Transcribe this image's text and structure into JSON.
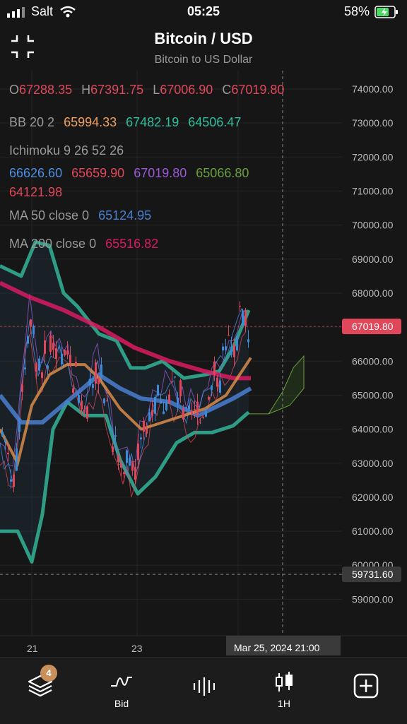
{
  "status": {
    "carrier": "Salt",
    "time": "05:25",
    "battery": "58%"
  },
  "header": {
    "title": "Bitcoin / USD",
    "subtitle": "Bitcoin to US Dollar"
  },
  "legend": {
    "ohlc": {
      "o_label": "O",
      "o": "67288.35",
      "h_label": "H",
      "h": "67391.75",
      "l_label": "L",
      "l": "67006.90",
      "c_label": "C",
      "c": "67019.80"
    },
    "bb": {
      "label": "BB 20 2",
      "v1": "65994.33",
      "v2": "67482.19",
      "v3": "64506.47"
    },
    "ichimoku": {
      "label": "Ichimoku 9 26 52 26",
      "v1": "66626.60",
      "v2": "65659.90",
      "v3": "67019.80",
      "v4": "65066.80",
      "v5": "64121.98"
    },
    "ma50": {
      "label": "MA 50 close 0",
      "value": "65124.95"
    },
    "ma200": {
      "label": "MA 200 close 0",
      "value": "65516.82"
    }
  },
  "price_axis": {
    "ticks": [
      "74000.00",
      "73000.00",
      "72000.00",
      "71000.00",
      "70000.00",
      "69000.00",
      "68000.00",
      "67000.00",
      "66000.00",
      "65000.00",
      "64000.00",
      "63000.00",
      "62000.00",
      "61000.00",
      "60000.00",
      "59000.00"
    ],
    "last_price": "67019.80",
    "crosshair_price": "59731.60"
  },
  "time_axis": {
    "labels": [
      "21",
      "23"
    ],
    "crosshair_time": "Mar 25, 2024   21:00"
  },
  "colors": {
    "bg": "#161616",
    "up": "#3d8bd8",
    "down": "#e0475a",
    "bb": "#2f9d86",
    "ma50": "#4a7fd1",
    "ma200": "#d81b60",
    "price_tag": "#e0475a",
    "badge": "#c9905c"
  },
  "bottom_nav": {
    "layers": {
      "icon": "layers-icon",
      "badge": "4"
    },
    "indicators": {
      "icon": "indicator-icon",
      "label": "Bid"
    },
    "chart_type": {
      "icon": "bars-icon"
    },
    "interval": {
      "icon": "candles-icon",
      "label": "1H"
    },
    "add": {
      "icon": "plus-square-icon"
    }
  }
}
